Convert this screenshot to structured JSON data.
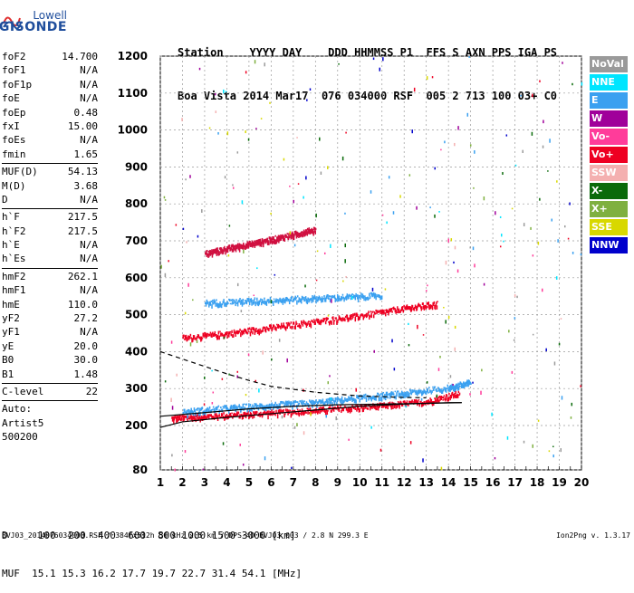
{
  "logo": {
    "line1": "Lowell",
    "line2": "DIGISONDE"
  },
  "header": {
    "labels": "Station    YYYY DAY    DDD HHMMSS P1  FFS S AXN PPS IGA PS",
    "values": "Boa Vista 2014 Mar17  076 034000 RSF  005 2 713 100 03+ C0"
  },
  "params": [
    {
      "k": "foF2",
      "v": "14.700"
    },
    {
      "k": "foF1",
      "v": "N/A"
    },
    {
      "k": "foF1p",
      "v": "N/A"
    },
    {
      "k": "foE",
      "v": "N/A"
    },
    {
      "k": "foEp",
      "v": "0.48"
    },
    {
      "k": "fxI",
      "v": "15.00"
    },
    {
      "k": "foEs",
      "v": "N/A"
    },
    {
      "k": "fmin",
      "v": "1.65"
    },
    {
      "sep": true
    },
    {
      "k": "MUF(D)",
      "v": "54.13"
    },
    {
      "k": "M(D)",
      "v": "3.68"
    },
    {
      "k": "D",
      "v": "N/A"
    },
    {
      "sep": true
    },
    {
      "k": "h`F",
      "v": "217.5"
    },
    {
      "k": "h`F2",
      "v": "217.5"
    },
    {
      "k": "h`E",
      "v": "N/A"
    },
    {
      "k": "h`Es",
      "v": "N/A"
    },
    {
      "sep": true
    },
    {
      "k": "hmF2",
      "v": "262.1"
    },
    {
      "k": "hmF1",
      "v": "N/A"
    },
    {
      "k": "hmE",
      "v": "110.0"
    },
    {
      "k": "yF2",
      "v": "27.2"
    },
    {
      "k": "yF1",
      "v": "N/A"
    },
    {
      "k": "yE",
      "v": "20.0"
    },
    {
      "k": "B0",
      "v": "30.0"
    },
    {
      "k": "B1",
      "v": "1.48"
    },
    {
      "sep": true
    },
    {
      "k": "C-level",
      "v": "22"
    },
    {
      "sep": true
    },
    {
      "k": "Auto:",
      "v": ""
    },
    {
      "k": "Artist5",
      "v": ""
    },
    {
      "k": "500200",
      "v": ""
    }
  ],
  "footer": {
    "d_row": "D     100  200  400  600  800 1000 1500 3000 [km]",
    "muf_row": "MUF  15.1 15.3 16.2 17.7 19.7 22.7 31.4 54.1 [MHz]"
  },
  "bottom_line": "BVJ03_2014076034000.RSF / 384fx512h 50 kHz 2.5 km / DPS-4D BVJ03 003 / 2.8 N 299.3 E",
  "version": "Ion2Png v. 1.3.17",
  "legend": [
    {
      "label": "NoVal",
      "color": "#9a9a9a"
    },
    {
      "label": "NNE",
      "color": "#00e5ff"
    },
    {
      "label": "E",
      "color": "#3aa0f0"
    },
    {
      "label": "W",
      "color": "#a0009a"
    },
    {
      "label": "Vo-",
      "color": "#ff3c9a"
    },
    {
      "label": "Vo+",
      "color": "#ee0022"
    },
    {
      "label": "SSW",
      "color": "#f4b0b0"
    },
    {
      "label": "X-",
      "color": "#0a6a0a"
    },
    {
      "label": "X+",
      "color": "#7fb040"
    },
    {
      "label": "SSE",
      "color": "#d8d800"
    },
    {
      "label": "NNW",
      "color": "#0000cc"
    }
  ],
  "chart_data": {
    "type": "scatter",
    "title": "",
    "xlabel": "",
    "ylabel": "",
    "x_unit": "MHz",
    "y_unit": "km",
    "xlim": [
      1,
      20
    ],
    "ylim": [
      80,
      1200
    ],
    "x_ticks": [
      1,
      2,
      3,
      4,
      5,
      6,
      7,
      8,
      9,
      10,
      11,
      12,
      13,
      14,
      15,
      16,
      17,
      18,
      19,
      20
    ],
    "y_ticks": [
      80,
      200,
      300,
      400,
      500,
      600,
      700,
      800,
      900,
      1000,
      1100,
      1200
    ],
    "grid": true,
    "legend_position": "right",
    "traces": [
      {
        "name": "O-trace (Vo+)",
        "color": "#ee0022",
        "x": [
          1.5,
          3,
          5,
          7,
          9,
          11,
          13,
          14.5
        ],
        "y": [
          222,
          228,
          234,
          240,
          248,
          256,
          268,
          290
        ]
      },
      {
        "name": "second hop (Vo+)",
        "color": "#ee0022",
        "x": [
          2,
          4,
          6,
          8,
          10,
          12,
          13.5
        ],
        "y": [
          440,
          452,
          468,
          484,
          500,
          520,
          532
        ]
      },
      {
        "name": "third hop",
        "color": "#d01040",
        "x": [
          3,
          4,
          5,
          6,
          7,
          8
        ],
        "y": [
          668,
          682,
          694,
          706,
          720,
          734
        ]
      },
      {
        "name": "E-direction echoes",
        "color": "#3aa0f0",
        "x": [
          2,
          4,
          6,
          8,
          10,
          12,
          14,
          15
        ],
        "y": [
          240,
          250,
          258,
          265,
          278,
          290,
          305,
          320
        ]
      },
      {
        "name": "E second hop",
        "color": "#3aa0f0",
        "x": [
          3,
          5,
          7,
          9,
          11
        ],
        "y": [
          535,
          540,
          545,
          550,
          555
        ]
      }
    ],
    "profile_lines": [
      {
        "name": "dashed profile",
        "style": "dashed",
        "x": [
          1,
          2,
          3,
          4,
          5,
          6,
          8,
          10,
          12,
          13
        ],
        "y": [
          400,
          380,
          360,
          340,
          322,
          306,
          290,
          280,
          276,
          275
        ]
      },
      {
        "name": "virtual height curve",
        "style": "solid",
        "x": [
          1,
          2,
          4,
          6,
          8,
          10,
          12,
          14,
          14.6
        ],
        "y": [
          195,
          210,
          222,
          232,
          242,
          252,
          258,
          262,
          262
        ]
      },
      {
        "name": "real height curve",
        "style": "solid",
        "x": [
          1,
          3,
          5,
          7,
          9,
          11,
          13,
          14.6
        ],
        "y": [
          225,
          235,
          245,
          252,
          256,
          258,
          260,
          262
        ]
      }
    ]
  }
}
